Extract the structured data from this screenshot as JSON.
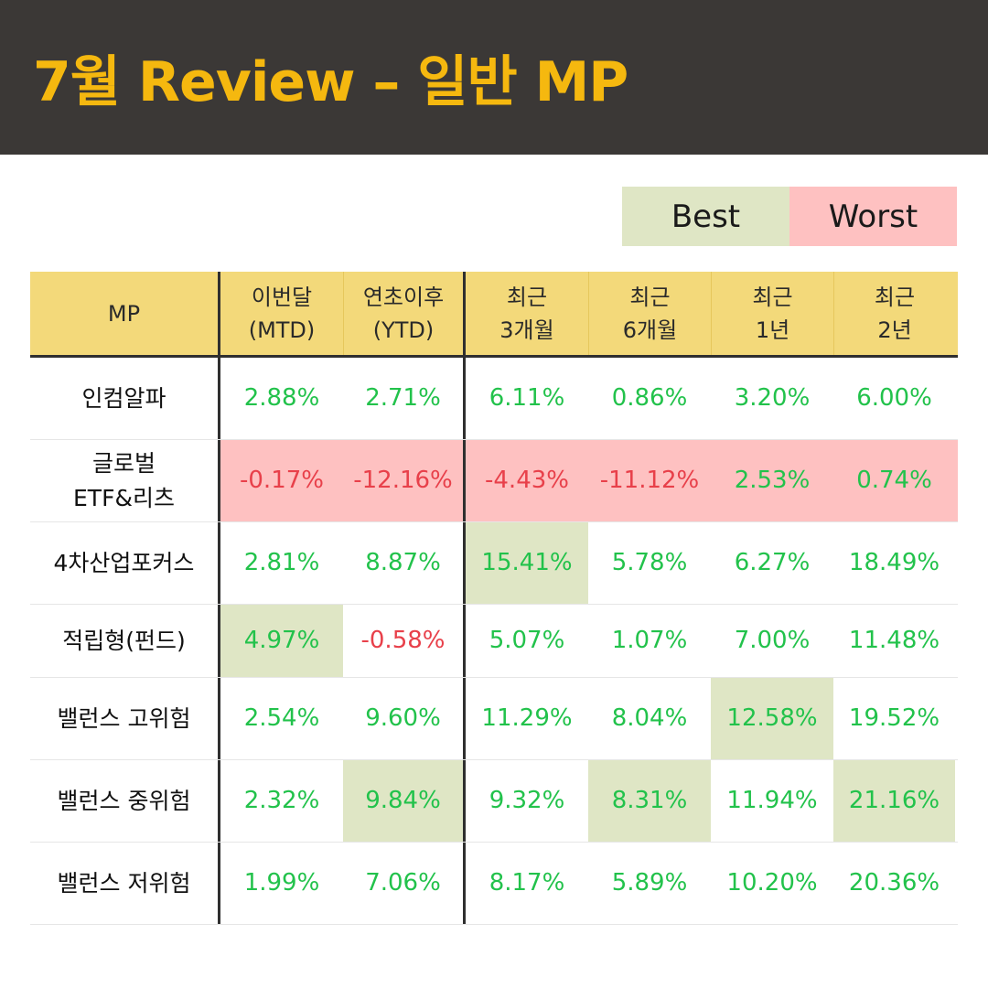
{
  "title": "7월 Review – 일반 MP",
  "legend": {
    "best": "Best",
    "worst": "Worst"
  },
  "colors": {
    "header_bg": "#3b3836",
    "title": "#f5b80f",
    "table_head": "#f3d97a",
    "best": "#dfe6c5",
    "worst": "#fec1c1",
    "positive": "#22c24b",
    "negative": "#e8404a"
  },
  "columns": [
    "MP",
    "이번달\n(MTD)",
    "연초이후\n(YTD)",
    "최근\n3개월",
    "최근\n6개월",
    "최근\n1년",
    "최근\n2년"
  ],
  "rows": [
    {
      "name": "인컴알파",
      "values": [
        "2.88%",
        "2.71%",
        "6.11%",
        "0.86%",
        "3.20%",
        "6.00%"
      ]
    },
    {
      "name": "글로벌\nETF&리츠",
      "values": [
        "-0.17%",
        "-12.16%",
        "-4.43%",
        "-11.12%",
        "2.53%",
        "0.74%"
      ]
    },
    {
      "name": "4차산업포커스",
      "values": [
        "2.81%",
        "8.87%",
        "15.41%",
        "5.78%",
        "6.27%",
        "18.49%"
      ]
    },
    {
      "name": "적립형(펀드)",
      "values": [
        "4.97%",
        "-0.58%",
        "5.07%",
        "1.07%",
        "7.00%",
        "11.48%"
      ]
    },
    {
      "name": "밸런스 고위험",
      "values": [
        "2.54%",
        "9.60%",
        "11.29%",
        "8.04%",
        "12.58%",
        "19.52%"
      ]
    },
    {
      "name": "밸런스 중위험",
      "values": [
        "2.32%",
        "9.84%",
        "9.32%",
        "8.31%",
        "11.94%",
        "21.16%"
      ]
    },
    {
      "name": "밸런스 저위험",
      "values": [
        "1.99%",
        "7.06%",
        "8.17%",
        "5.89%",
        "10.20%",
        "20.36%"
      ]
    }
  ]
}
